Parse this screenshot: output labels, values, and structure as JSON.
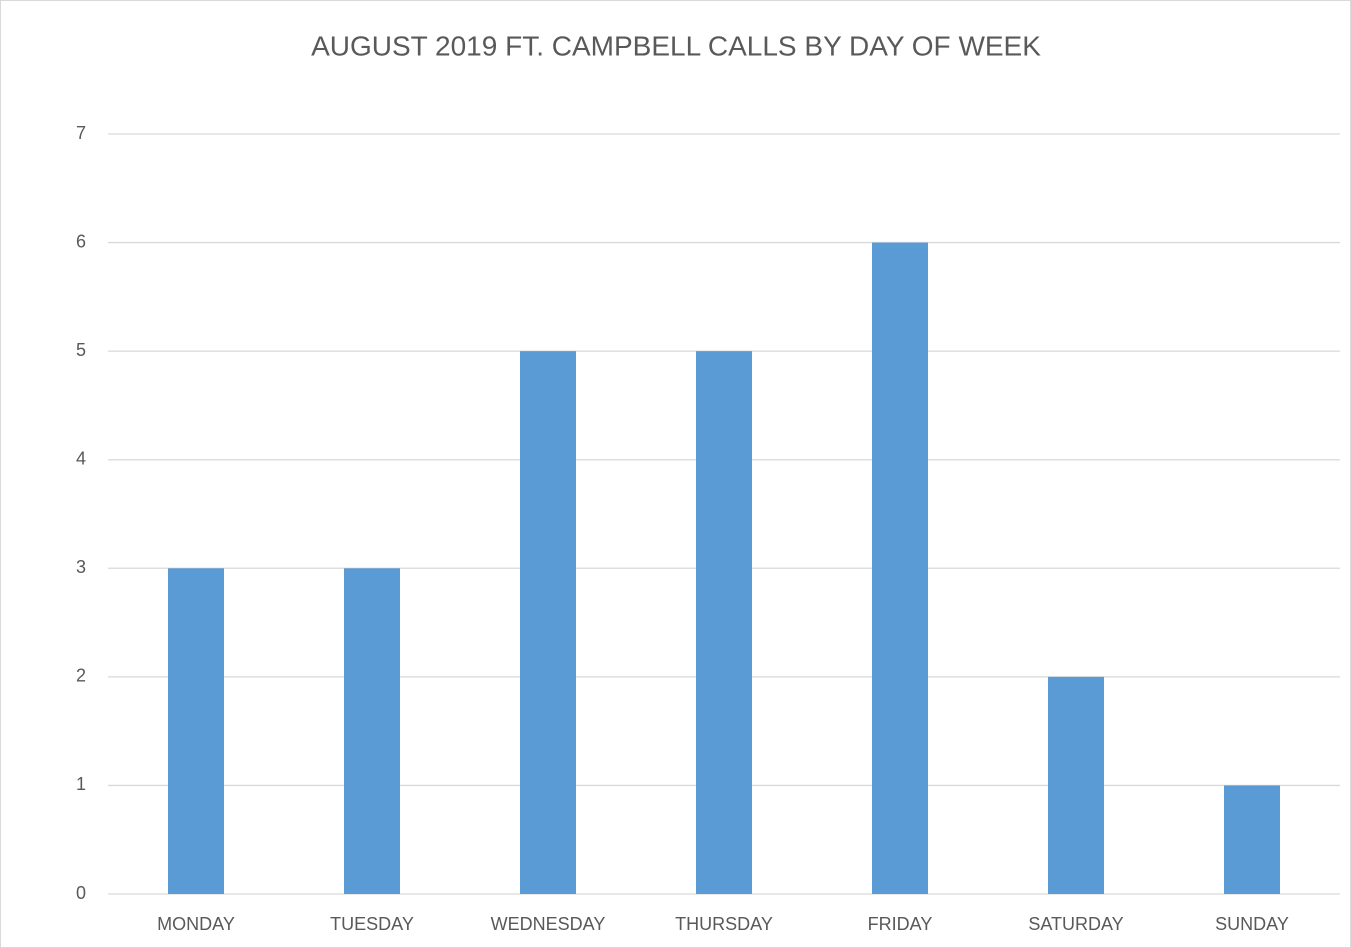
{
  "chart_data": {
    "type": "bar",
    "title": "AUGUST 2019 FT. CAMPBELL CALLS BY DAY OF WEEK",
    "categories": [
      "MONDAY",
      "TUESDAY",
      "WEDNESDAY",
      "THURSDAY",
      "FRIDAY",
      "SATURDAY",
      "SUNDAY"
    ],
    "values": [
      3,
      3,
      5,
      5,
      6,
      2,
      1
    ],
    "color": "#5b9bd5",
    "ylim": [
      0,
      7
    ],
    "yticks": [
      0,
      1,
      2,
      3,
      4,
      5,
      6,
      7
    ],
    "grid": true
  }
}
